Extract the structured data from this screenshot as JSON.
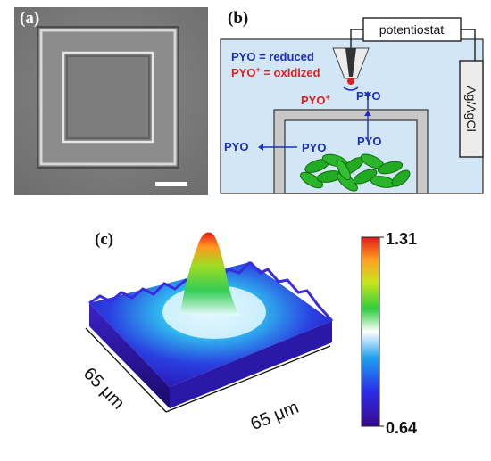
{
  "figure": {
    "panel_a": {
      "label": "(a)"
    },
    "panel_b": {
      "label": "(b)",
      "potentiostat": "potentiostat",
      "reference_electrode": "Ag/AgCl",
      "legend_reduced": "PYO = reduced",
      "legend_oxidized_main": "PYO",
      "legend_oxidized_sup": "+",
      "legend_oxidized_rest": " = oxidized",
      "pyo_plus_main": "PYO",
      "pyo_plus_sup": "+",
      "pyo_top": "PYO",
      "pyo_outside": "PYO",
      "pyo_mid": "PYO",
      "pyo_inner": "PYO",
      "colors": {
        "reduced": "#1a2fc0",
        "oxidized": "#e02020",
        "medium": "#d2e6f5",
        "bacteria": "#22aa22"
      }
    },
    "panel_c": {
      "label": "(c)",
      "x_axis_label": "65 μm",
      "y_axis_label": "65 μm",
      "colorbar_max": "1.31",
      "colorbar_min": "0.64"
    }
  }
}
